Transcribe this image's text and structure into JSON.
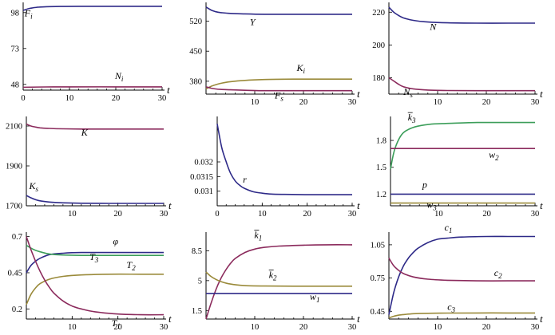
{
  "figure": {
    "colors": {
      "blue": "#2e2a88",
      "red": "#8b2a5c",
      "gold": "#9a8a3a",
      "green": "#3c9e5a"
    }
  },
  "chart_data": [
    {
      "type": "line",
      "xlabel": "t",
      "xlim": [
        0,
        30
      ],
      "ylim": [
        44,
        104
      ],
      "xticks": [
        "0",
        "10",
        "20",
        "30"
      ],
      "yticks": [
        "48",
        "73",
        "98"
      ],
      "series": [
        {
          "name": "F_i",
          "color": "blue",
          "label": {
            "main": "F",
            "sub": "i",
            "bar": false
          },
          "x": [
            0,
            1,
            2,
            3,
            5,
            8,
            12,
            18,
            25,
            30
          ],
          "y": [
            99.5,
            100.6,
            101.3,
            101.7,
            102.1,
            102.3,
            102.4,
            102.4,
            102.4,
            102.4
          ]
        },
        {
          "name": "N_i",
          "color": "red",
          "label": {
            "main": "N",
            "sub": "i",
            "bar": false
          },
          "x": [
            0,
            5,
            10,
            20,
            30
          ],
          "y": [
            46.0,
            46.2,
            46.3,
            46.3,
            46.3
          ]
        }
      ]
    },
    {
      "type": "line",
      "xlabel": "t",
      "xlim": [
        0,
        30
      ],
      "ylim": [
        350,
        560
      ],
      "xticks": [
        "10",
        "20",
        "30"
      ],
      "yticks": [
        "380",
        "450",
        "520"
      ],
      "series": [
        {
          "name": "Y",
          "color": "blue",
          "label": {
            "main": "Y",
            "sub": "",
            "bar": false
          },
          "x": [
            0,
            1,
            2,
            3,
            5,
            8,
            12,
            18,
            25,
            30
          ],
          "y": [
            553,
            546,
            542,
            540,
            538,
            537,
            536,
            536,
            536,
            536
          ]
        },
        {
          "name": "K_i",
          "color": "gold",
          "label": {
            "main": "K",
            "sub": "i",
            "bar": false
          },
          "x": [
            0,
            1,
            2,
            3,
            5,
            8,
            12,
            18,
            25,
            30
          ],
          "y": [
            362,
            368,
            372,
            375,
            379,
            382,
            384,
            385,
            385,
            385
          ]
        },
        {
          "name": "F_s",
          "color": "red",
          "label": {
            "main": "F",
            "sub": "s",
            "bar": false
          },
          "x": [
            0,
            1,
            2,
            3,
            5,
            8,
            12,
            18,
            25,
            30
          ],
          "y": [
            367,
            364,
            362,
            361,
            360,
            359,
            358,
            358,
            358,
            358
          ]
        }
      ]
    },
    {
      "type": "line",
      "xlabel": "t",
      "xlim": [
        0,
        30
      ],
      "ylim": [
        170,
        225
      ],
      "xticks": [
        "10",
        "20",
        "30"
      ],
      "yticks": [
        "180",
        "200",
        "220"
      ],
      "series": [
        {
          "name": "N",
          "color": "blue",
          "label": {
            "main": "N",
            "sub": "",
            "bar": false
          },
          "x": [
            0,
            1,
            2,
            3,
            5,
            8,
            12,
            18,
            25,
            30
          ],
          "y": [
            223,
            220,
            218,
            216.5,
            215,
            214,
            213.5,
            213.3,
            213.3,
            213.3
          ]
        },
        {
          "name": "N_s",
          "color": "red",
          "label": {
            "main": "N",
            "sub": "s",
            "bar": false
          },
          "x": [
            0,
            1,
            2,
            3,
            5,
            8,
            12,
            18,
            25,
            30
          ],
          "y": [
            180,
            178,
            176,
            174.5,
            173.2,
            172.5,
            172.2,
            172.1,
            172.1,
            172.1
          ]
        }
      ]
    },
    {
      "type": "line",
      "xlabel": "t",
      "xlim": [
        0,
        30
      ],
      "ylim": [
        1700,
        2140
      ],
      "xticks": [
        "10",
        "20",
        "30"
      ],
      "yticks": [
        "1700",
        "1900",
        "2100"
      ],
      "series": [
        {
          "name": "K",
          "color": "red",
          "label": {
            "main": "K",
            "sub": "",
            "bar": false
          },
          "x": [
            0,
            1,
            2,
            3,
            5,
            8,
            12,
            18,
            25,
            30
          ],
          "y": [
            2110,
            2100,
            2095,
            2091,
            2088,
            2086,
            2085,
            2085,
            2085,
            2085
          ]
        },
        {
          "name": "K_s",
          "color": "blue",
          "label": {
            "main": "K",
            "sub": "s",
            "bar": false
          },
          "x": [
            0,
            1,
            2,
            3,
            5,
            8,
            12,
            18,
            25,
            30
          ],
          "y": [
            1752,
            1740,
            1731,
            1725,
            1719,
            1715,
            1713,
            1712,
            1712,
            1712
          ]
        }
      ]
    },
    {
      "type": "line",
      "xlabel": "t",
      "xlim": [
        0,
        30
      ],
      "ylim": [
        0.0305,
        0.0335
      ],
      "xticks": [
        "0",
        "10",
        "20",
        "30"
      ],
      "yticks": [
        "0.031",
        "0.0315",
        "0.032"
      ],
      "series": [
        {
          "name": "r",
          "color": "blue",
          "label": {
            "main": "r",
            "sub": "",
            "bar": false
          },
          "x": [
            0,
            1,
            2,
            3,
            4,
            5,
            6,
            8,
            10,
            12,
            15,
            20,
            25,
            30
          ],
          "y": [
            0.0333,
            0.0325,
            0.032,
            0.0316,
            0.03135,
            0.0312,
            0.0311,
            0.03098,
            0.03093,
            0.0309,
            0.03089,
            0.03088,
            0.03088,
            0.03088
          ]
        }
      ]
    },
    {
      "type": "line",
      "xlabel": "t",
      "xlim": [
        0,
        30
      ],
      "ylim": [
        1.07,
        2.05
      ],
      "xticks": [
        "10",
        "20",
        "30"
      ],
      "yticks": [
        "1.2",
        "1.5",
        "1.8"
      ],
      "series": [
        {
          "name": "k_3",
          "color": "green",
          "label": {
            "main": "k",
            "sub": "3",
            "bar": true
          },
          "x": [
            0,
            0.5,
            1,
            2,
            3,
            5,
            8,
            12,
            18,
            25,
            30
          ],
          "y": [
            1.48,
            1.62,
            1.72,
            1.84,
            1.9,
            1.95,
            1.98,
            1.99,
            2.0,
            2.0,
            2.0
          ]
        },
        {
          "name": "w_2",
          "color": "red",
          "label": {
            "main": "w",
            "sub": "2",
            "bar": false
          },
          "x": [
            0,
            10,
            20,
            30
          ],
          "y": [
            1.71,
            1.71,
            1.71,
            1.71
          ]
        },
        {
          "name": "p",
          "color": "blue",
          "label": {
            "main": "p",
            "sub": "",
            "bar": false
          },
          "x": [
            0,
            10,
            20,
            30
          ],
          "y": [
            1.2,
            1.2,
            1.2,
            1.2
          ]
        },
        {
          "name": "w_3",
          "color": "gold",
          "label": {
            "main": "w",
            "sub": "3",
            "bar": false
          },
          "x": [
            0,
            10,
            20,
            30
          ],
          "y": [
            1.1,
            1.1,
            1.1,
            1.1
          ]
        }
      ]
    },
    {
      "type": "line",
      "xlabel": "t",
      "xlim": [
        0,
        30
      ],
      "ylim": [
        0.13,
        0.72
      ],
      "xticks": [
        "10",
        "20",
        "30"
      ],
      "yticks": [
        "0.2",
        "0.45",
        "0.7"
      ],
      "series": [
        {
          "name": "phi",
          "color": "blue",
          "label": {
            "main": "φ",
            "sub": "",
            "bar": false
          },
          "x": [
            0,
            1,
            2,
            3,
            5,
            8,
            12,
            18,
            25,
            30
          ],
          "y": [
            0.45,
            0.5,
            0.53,
            0.55,
            0.575,
            0.585,
            0.59,
            0.59,
            0.59,
            0.59
          ]
        },
        {
          "name": "T_3",
          "color": "green",
          "label": {
            "main": "T",
            "sub": "3",
            "bar": false
          },
          "x": [
            0,
            1,
            2,
            3,
            5,
            8,
            12,
            18,
            25,
            30
          ],
          "y": [
            0.64,
            0.62,
            0.605,
            0.595,
            0.58,
            0.573,
            0.57,
            0.57,
            0.57,
            0.57
          ]
        },
        {
          "name": "T_2",
          "color": "gold",
          "label": {
            "main": "T",
            "sub": "2",
            "bar": false
          },
          "x": [
            0,
            1,
            2,
            3,
            5,
            8,
            12,
            18,
            25,
            30
          ],
          "y": [
            0.23,
            0.3,
            0.345,
            0.375,
            0.405,
            0.425,
            0.435,
            0.44,
            0.44,
            0.44
          ]
        },
        {
          "name": "T_1",
          "color": "red",
          "label": {
            "main": "T",
            "sub": "1",
            "bar": false
          },
          "x": [
            0,
            1,
            2,
            3,
            4,
            5,
            6,
            8,
            10,
            12,
            15,
            20,
            25,
            30
          ],
          "y": [
            0.7,
            0.61,
            0.53,
            0.46,
            0.4,
            0.35,
            0.31,
            0.255,
            0.22,
            0.2,
            0.18,
            0.165,
            0.16,
            0.16
          ]
        }
      ]
    },
    {
      "type": "line",
      "xlabel": "t",
      "xlim": [
        0,
        30
      ],
      "ylim": [
        0.5,
        10.5
      ],
      "xticks": [
        "10",
        "20",
        "30"
      ],
      "yticks": [
        "1.5",
        "5",
        "8.5"
      ],
      "series": [
        {
          "name": "k_1",
          "color": "red",
          "label": {
            "main": "k",
            "sub": "1",
            "bar": true
          },
          "x": [
            0,
            1,
            2,
            3,
            4,
            5,
            6,
            8,
            10,
            12,
            15,
            20,
            25,
            30
          ],
          "y": [
            0.5,
            2.3,
            3.9,
            5.2,
            6.2,
            7.0,
            7.6,
            8.3,
            8.7,
            8.9,
            9.05,
            9.15,
            9.2,
            9.2
          ]
        },
        {
          "name": "k_2",
          "color": "gold",
          "label": {
            "main": "k",
            "sub": "2",
            "bar": true
          },
          "x": [
            0,
            1,
            2,
            3,
            5,
            8,
            12,
            18,
            25,
            30
          ],
          "y": [
            6.0,
            5.5,
            5.15,
            4.9,
            4.6,
            4.42,
            4.37,
            4.35,
            4.35,
            4.35
          ]
        },
        {
          "name": "w_1",
          "color": "blue",
          "label": {
            "main": "w",
            "sub": "1",
            "bar": false
          },
          "x": [
            0,
            10,
            20,
            30
          ],
          "y": [
            3.5,
            3.5,
            3.5,
            3.5
          ]
        }
      ]
    },
    {
      "type": "line",
      "xlabel": "t",
      "xlim": [
        0,
        30
      ],
      "ylim": [
        0.38,
        1.15
      ],
      "xticks": [
        "10",
        "20",
        "30"
      ],
      "yticks": [
        "0.45",
        "0.75",
        "1.05"
      ],
      "series": [
        {
          "name": "c_1",
          "color": "blue",
          "label": {
            "main": "c",
            "sub": "1",
            "bar": false
          },
          "x": [
            0,
            1,
            2,
            3,
            4,
            5,
            6,
            8,
            10,
            12,
            15,
            20,
            25,
            30
          ],
          "y": [
            0.42,
            0.62,
            0.76,
            0.86,
            0.93,
            0.98,
            1.02,
            1.07,
            1.1,
            1.11,
            1.12,
            1.125,
            1.125,
            1.125
          ]
        },
        {
          "name": "c_2",
          "color": "red",
          "label": {
            "main": "c",
            "sub": "2",
            "bar": false
          },
          "x": [
            0,
            1,
            2,
            3,
            5,
            8,
            12,
            18,
            25,
            30
          ],
          "y": [
            0.93,
            0.86,
            0.82,
            0.79,
            0.76,
            0.74,
            0.73,
            0.725,
            0.725,
            0.725
          ]
        },
        {
          "name": "c_3",
          "color": "gold",
          "label": {
            "main": "c",
            "sub": "3",
            "bar": false
          },
          "x": [
            0,
            1,
            2,
            3,
            5,
            8,
            12,
            18,
            25,
            30
          ],
          "y": [
            0.39,
            0.405,
            0.415,
            0.42,
            0.428,
            0.432,
            0.434,
            0.435,
            0.435,
            0.435
          ]
        }
      ]
    }
  ]
}
